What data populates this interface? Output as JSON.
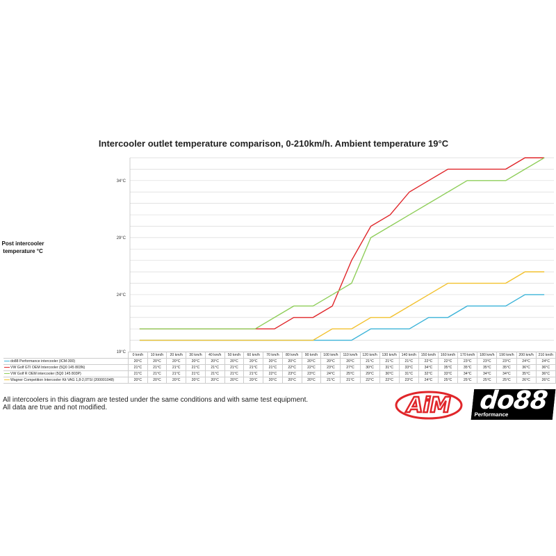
{
  "chart_data": {
    "type": "line",
    "title": "Intercooler outlet temperature comparison, 0-210km/h. Ambient temperature 19°C",
    "ylabel": "Post intercooler temperature °C",
    "xlabel": "",
    "ylim": [
      19,
      36
    ],
    "yticks": [
      "19°C",
      "24°C",
      "29°C",
      "34°C"
    ],
    "ytick_values": [
      19,
      24,
      29,
      34
    ],
    "grid": true,
    "legend": "table-bottom",
    "categories": [
      "0 km/h",
      "10 km/h",
      "20 km/h",
      "30 km/h",
      "40 km/h",
      "50 km/h",
      "60 km/h",
      "70 km/h",
      "80 km/h",
      "90 km/h",
      "100 km/h",
      "110 km/h",
      "120 km/h",
      "130 km/h",
      "140 km/h",
      "150 km/h",
      "160 km/h",
      "170 km/h",
      "180 km/h",
      "190 km/h",
      "200 km/h",
      "210 km/h"
    ],
    "series": [
      {
        "name": "do88 Performance intercooler (ICM-300)",
        "color": "#3bb3d8",
        "values": [
          20,
          20,
          20,
          20,
          20,
          20,
          20,
          20,
          20,
          20,
          20,
          20,
          21,
          21,
          21,
          22,
          22,
          23,
          23,
          23,
          24,
          24
        ]
      },
      {
        "name": "VW Golf GTI OEM Intercooler (5Q0 145 803N)",
        "color": "#e0262a",
        "values": [
          21,
          21,
          21,
          21,
          21,
          21,
          21,
          21,
          22,
          22,
          23,
          27,
          30,
          31,
          33,
          34,
          35,
          35,
          35,
          35,
          36,
          36
        ]
      },
      {
        "name": "VW Golf R OEM intercooler (5Q0 145 803P)",
        "color": "#8fce5a",
        "values": [
          21,
          21,
          21,
          21,
          21,
          21,
          21,
          22,
          23,
          23,
          24,
          25,
          29,
          30,
          31,
          32,
          33,
          34,
          34,
          34,
          35,
          36
        ]
      },
      {
        "name": "Wagner Competition Intercooler Kit VAG 1,8-2,0TSI (200001048)",
        "color": "#f2c12e",
        "values": [
          20,
          20,
          20,
          20,
          20,
          20,
          20,
          20,
          20,
          20,
          21,
          21,
          22,
          22,
          23,
          24,
          25,
          25,
          25,
          25,
          26,
          26
        ]
      }
    ],
    "unit": "°C"
  },
  "footer": {
    "line1": "All intercoolers in this diagram are tested under the same conditions and with same test equipment.",
    "line2": "All data are true and not modified."
  },
  "logos": {
    "aim": "AiM",
    "do88": "do88",
    "do88_sub": "Performance"
  }
}
